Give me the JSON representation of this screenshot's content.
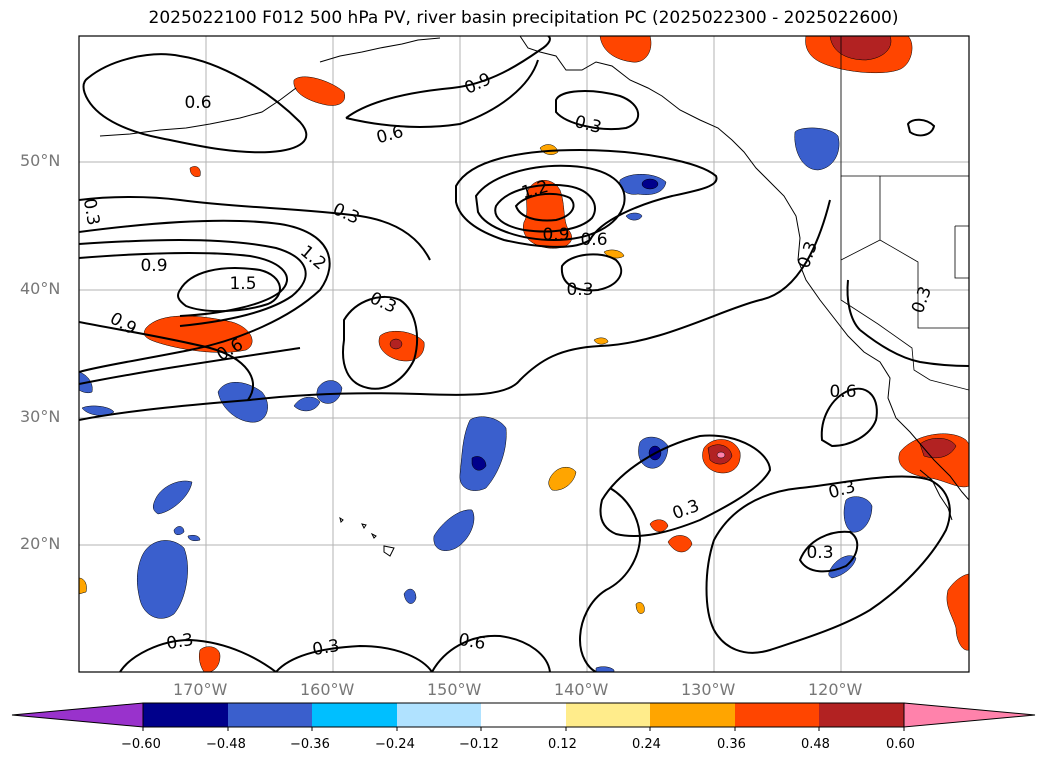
{
  "title": "2025022100 F012 500 hPa PV, river basin precipitation PC (2025022300 - 2025022600)",
  "lat_labels": [
    "50°N",
    "40°N",
    "30°N",
    "20°N"
  ],
  "lon_labels": [
    "170°W",
    "160°W",
    "150°W",
    "140°W",
    "130°W",
    "120°W"
  ],
  "contour_labels": [
    "0.6",
    "0.9",
    "0.6",
    "0.3",
    "0.3",
    "0.3",
    "0.9",
    "1.5",
    "1.2",
    "0.9",
    "0.6",
    "1.2",
    "0.9",
    "0.6",
    "0.3",
    "0.3",
    "0.3",
    "0.6",
    "0.3",
    "0.3",
    "0.3",
    "0.3",
    "0.3",
    "0.3",
    "0.6"
  ],
  "colorbar": {
    "ticks": [
      "−0.60",
      "−0.48",
      "−0.36",
      "−0.24",
      "−0.12",
      "0.12",
      "0.24",
      "0.36",
      "0.48",
      "0.60"
    ],
    "colors": [
      "#9932cc",
      "#00008b",
      "#3a5fcd",
      "#00bfff",
      "#b0e2ff",
      "#ffffff",
      "#ffec8b",
      "#ffa500",
      "#ff4500",
      "#b22222",
      "#ff82ab"
    ]
  }
}
